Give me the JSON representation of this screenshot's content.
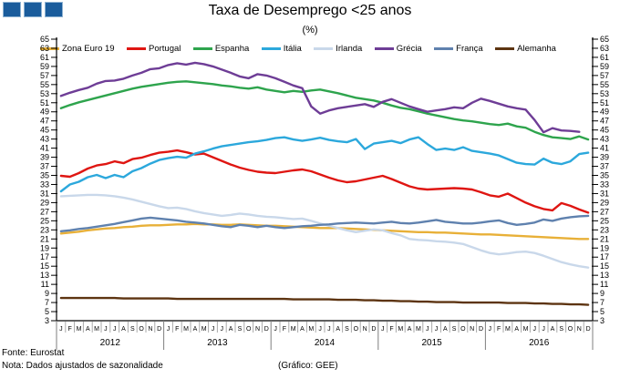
{
  "title": "Taxa de Desemprego <25 anos",
  "subtitle": "(%)",
  "logo": {
    "square_color": "#1A5C9C",
    "square_count": 3
  },
  "footer": {
    "fonte": "Fonte: Eurostat",
    "nota": "Nota: Dados ajustados de sazonalidade",
    "grafico": "(Gráfico: GEE)"
  },
  "chart_data": {
    "type": "line",
    "title": "Taxa de Desemprego <25 anos",
    "subtitle": "(%)",
    "xlabel": "",
    "ylabel": "",
    "ylim": [
      3,
      65
    ],
    "ytick_step": 2,
    "grid": false,
    "legend_position": "top",
    "dual_y_axis": true,
    "years": [
      "2012",
      "2013",
      "2014",
      "2015",
      "2016"
    ],
    "month_letters": [
      "J",
      "F",
      "M",
      "A",
      "M",
      "J",
      "J",
      "A",
      "S",
      "O",
      "N",
      "D"
    ],
    "series": [
      {
        "name": "Zona Euro 19",
        "color": "#E8B038",
        "values": [
          22.2,
          22.4,
          22.6,
          22.9,
          23.1,
          23.3,
          23.4,
          23.6,
          23.7,
          23.9,
          24.0,
          24.0,
          24.1,
          24.2,
          24.2,
          24.3,
          24.2,
          24.2,
          24.1,
          24.1,
          24.2,
          24.1,
          24.0,
          23.9,
          23.9,
          23.8,
          23.7,
          23.6,
          23.5,
          23.4,
          23.4,
          23.4,
          23.3,
          23.2,
          23.1,
          23.0,
          22.9,
          22.8,
          22.7,
          22.6,
          22.5,
          22.5,
          22.4,
          22.4,
          22.3,
          22.2,
          22.1,
          22.0,
          22.0,
          21.9,
          21.8,
          21.7,
          21.6,
          21.5,
          21.4,
          21.3,
          21.2,
          21.1,
          21.0,
          21.0
        ]
      },
      {
        "name": "Portugal",
        "color": "#DF1612",
        "values": [
          34.9,
          34.7,
          35.5,
          36.5,
          37.2,
          37.5,
          38.1,
          37.7,
          38.6,
          38.9,
          39.5,
          40.0,
          40.2,
          40.5,
          40.1,
          39.6,
          39.8,
          39.0,
          38.2,
          37.4,
          36.7,
          36.2,
          35.8,
          35.6,
          35.5,
          35.8,
          36.1,
          36.3,
          35.9,
          35.2,
          34.5,
          33.9,
          33.5,
          33.7,
          34.1,
          34.5,
          34.9,
          34.2,
          33.4,
          32.6,
          32.1,
          31.9,
          32.0,
          32.1,
          32.2,
          32.1,
          31.9,
          31.3,
          30.6,
          30.3,
          31.0,
          30.0,
          29.0,
          28.2,
          27.6,
          27.3,
          28.9,
          28.3,
          27.5,
          26.8
        ]
      },
      {
        "name": "Espanha",
        "color": "#2EA44D",
        "values": [
          49.8,
          50.5,
          51.1,
          51.6,
          52.1,
          52.6,
          53.1,
          53.6,
          54.1,
          54.5,
          54.8,
          55.1,
          55.4,
          55.6,
          55.7,
          55.5,
          55.3,
          55.1,
          54.8,
          54.6,
          54.3,
          54.1,
          54.4,
          53.9,
          53.6,
          53.3,
          53.6,
          53.4,
          53.7,
          53.9,
          53.5,
          53.1,
          52.6,
          52.1,
          51.8,
          51.5,
          51.0,
          50.4,
          49.9,
          49.6,
          49.1,
          48.6,
          48.2,
          47.8,
          47.4,
          47.1,
          46.9,
          46.6,
          46.3,
          46.1,
          46.4,
          45.8,
          45.5,
          44.6,
          43.9,
          43.4,
          43.2,
          43.0,
          43.6,
          42.9
        ]
      },
      {
        "name": "Itália",
        "color": "#2CA8DC",
        "values": [
          31.5,
          33.0,
          33.6,
          34.6,
          35.1,
          34.4,
          35.1,
          34.6,
          35.9,
          36.6,
          37.6,
          38.4,
          38.8,
          39.1,
          38.9,
          39.8,
          40.3,
          40.9,
          41.4,
          41.7,
          42.0,
          42.3,
          42.5,
          42.8,
          43.2,
          43.4,
          42.9,
          42.6,
          42.9,
          43.3,
          42.8,
          42.5,
          42.3,
          43.0,
          40.8,
          42.0,
          42.3,
          42.6,
          42.1,
          42.9,
          43.4,
          41.9,
          40.6,
          40.9,
          40.6,
          41.2,
          40.4,
          40.1,
          39.8,
          39.4,
          38.6,
          37.8,
          37.5,
          37.4,
          38.7,
          37.8,
          37.5,
          38.1,
          39.7,
          40.0
        ]
      },
      {
        "name": "Irlanda",
        "color": "#C9D8EA",
        "values": [
          30.4,
          30.5,
          30.6,
          30.7,
          30.7,
          30.6,
          30.4,
          30.1,
          29.7,
          29.2,
          28.7,
          28.2,
          27.8,
          27.9,
          27.6,
          27.1,
          26.7,
          26.4,
          26.1,
          26.3,
          26.6,
          26.4,
          26.1,
          25.9,
          25.8,
          25.6,
          25.4,
          25.5,
          25.0,
          24.4,
          23.9,
          23.4,
          22.9,
          22.5,
          22.8,
          23.1,
          22.9,
          22.3,
          21.8,
          21.0,
          20.8,
          20.7,
          20.5,
          20.4,
          20.2,
          19.9,
          19.2,
          18.5,
          17.9,
          17.6,
          17.8,
          18.1,
          18.2,
          17.9,
          17.3,
          16.6,
          15.9,
          15.4,
          15.0,
          14.7
        ]
      },
      {
        "name": "Grécia",
        "color": "#6E3D96",
        "values": [
          52.5,
          53.2,
          53.8,
          54.3,
          55.2,
          55.8,
          55.9,
          56.3,
          57.0,
          57.6,
          58.4,
          58.6,
          59.3,
          59.7,
          59.4,
          59.8,
          59.5,
          59.0,
          58.3,
          57.6,
          56.8,
          56.4,
          57.3,
          57.0,
          56.4,
          55.6,
          54.8,
          54.2,
          50.2,
          48.6,
          49.3,
          49.8,
          50.1,
          50.4,
          50.7,
          50.1,
          51.2,
          51.8,
          51.0,
          50.2,
          49.6,
          49.0,
          49.3,
          49.6,
          50.0,
          49.8,
          51.0,
          51.9,
          51.4,
          50.8,
          50.2,
          49.8,
          49.5,
          47.2,
          44.5,
          45.4,
          44.9,
          44.8,
          44.6,
          null
        ]
      },
      {
        "name": "França",
        "color": "#5F81AE",
        "values": [
          22.7,
          22.9,
          23.2,
          23.4,
          23.7,
          24.0,
          24.3,
          24.7,
          25.1,
          25.5,
          25.7,
          25.5,
          25.3,
          25.1,
          24.8,
          24.6,
          24.4,
          24.1,
          23.8,
          23.6,
          24.1,
          23.9,
          23.6,
          23.9,
          23.6,
          23.4,
          23.6,
          23.8,
          23.9,
          24.1,
          24.2,
          24.4,
          24.5,
          24.6,
          24.5,
          24.4,
          24.6,
          24.8,
          24.5,
          24.4,
          24.6,
          24.9,
          25.2,
          24.8,
          24.6,
          24.4,
          24.4,
          24.6,
          24.9,
          25.1,
          24.5,
          24.1,
          24.3,
          24.6,
          25.3,
          25.0,
          25.5,
          25.8,
          26.0,
          26.1
        ]
      },
      {
        "name": "Alemanha",
        "color": "#5D3411",
        "values": [
          8.0,
          8.0,
          8.0,
          8.0,
          8.0,
          8.0,
          8.0,
          7.9,
          7.9,
          7.9,
          7.9,
          7.9,
          7.9,
          7.8,
          7.8,
          7.8,
          7.8,
          7.8,
          7.8,
          7.8,
          7.8,
          7.8,
          7.8,
          7.8,
          7.8,
          7.8,
          7.7,
          7.7,
          7.7,
          7.7,
          7.7,
          7.6,
          7.6,
          7.6,
          7.5,
          7.5,
          7.4,
          7.4,
          7.3,
          7.3,
          7.2,
          7.2,
          7.1,
          7.1,
          7.1,
          7.0,
          7.0,
          7.0,
          7.0,
          7.0,
          6.9,
          6.9,
          6.9,
          6.8,
          6.8,
          6.7,
          6.7,
          6.6,
          6.6,
          6.5
        ]
      }
    ]
  }
}
